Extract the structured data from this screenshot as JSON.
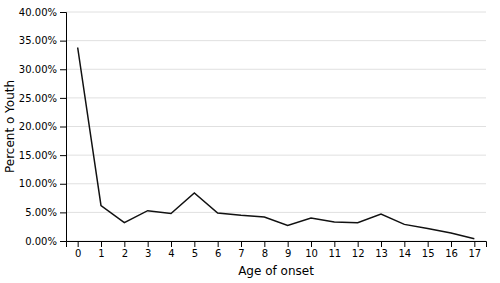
{
  "chart_data": {
    "type": "line",
    "xlabel": "Age of onset",
    "ylabel": "Percent o Youth",
    "x": [
      0,
      1,
      2,
      3,
      4,
      5,
      6,
      7,
      8,
      9,
      10,
      11,
      12,
      13,
      14,
      15,
      16,
      17
    ],
    "values": [
      0.338,
      0.062,
      0.032,
      0.053,
      0.048,
      0.084,
      0.049,
      0.045,
      0.042,
      0.027,
      0.04,
      0.033,
      0.032,
      0.047,
      0.029,
      0.022,
      0.014,
      0.004
    ],
    "color": "#111111",
    "xlim": [
      -0.5,
      17.5
    ],
    "xticks": [
      0,
      1,
      2,
      3,
      4,
      5,
      6,
      7,
      8,
      9,
      10,
      11,
      12,
      13,
      14,
      15,
      16,
      17
    ],
    "ylim": [
      0.0,
      0.4
    ],
    "yticks": [
      {
        "value": 0.0,
        "label": "0.00%"
      },
      {
        "value": 0.05,
        "label": "5.00%"
      },
      {
        "value": 0.1,
        "label": "10.00%"
      },
      {
        "value": 0.15,
        "label": "15.00%"
      },
      {
        "value": 0.2,
        "label": "20.00%"
      },
      {
        "value": 0.25,
        "label": "25.00%"
      },
      {
        "value": 0.3,
        "label": "30.00%"
      },
      {
        "value": 0.35,
        "label": "35.00%"
      },
      {
        "value": 0.4,
        "label": "40.00%"
      }
    ],
    "grid": true
  }
}
